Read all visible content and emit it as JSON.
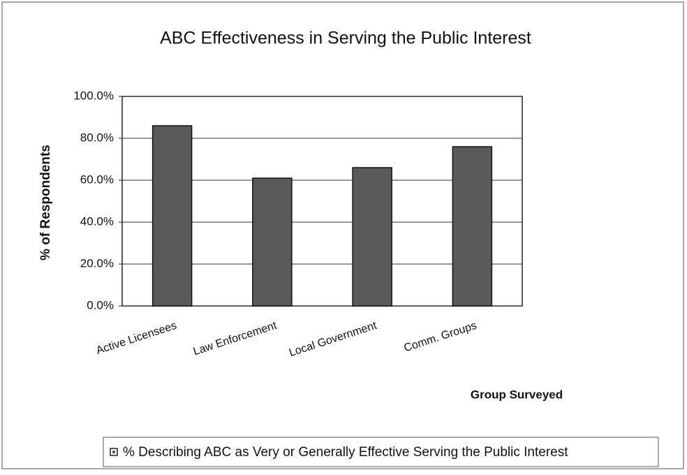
{
  "chart_data": {
    "type": "bar",
    "title": "ABC Effectiveness in Serving the Public Interest",
    "x_label": "Group Surveyed",
    "y_label": "% of Respondents",
    "categories": [
      "Active Licensees",
      "Law Enforcement",
      "Local Government",
      "Comm. Groups"
    ],
    "series": [
      {
        "name": "% Describing ABC as Very or Generally Effective Serving the Public Interest",
        "color": "#5a5a5a",
        "values": [
          86,
          61,
          66,
          76
        ]
      }
    ],
    "ylim": [
      0,
      100
    ],
    "yticks": [
      {
        "value": 0,
        "label": "0.0%"
      },
      {
        "value": 20,
        "label": "20.0%"
      },
      {
        "value": 40,
        "label": "40.0%"
      },
      {
        "value": 60,
        "label": "60.0%"
      },
      {
        "value": 80,
        "label": "80.0%"
      },
      {
        "value": 100,
        "label": "100.0%"
      }
    ],
    "grid": true
  }
}
